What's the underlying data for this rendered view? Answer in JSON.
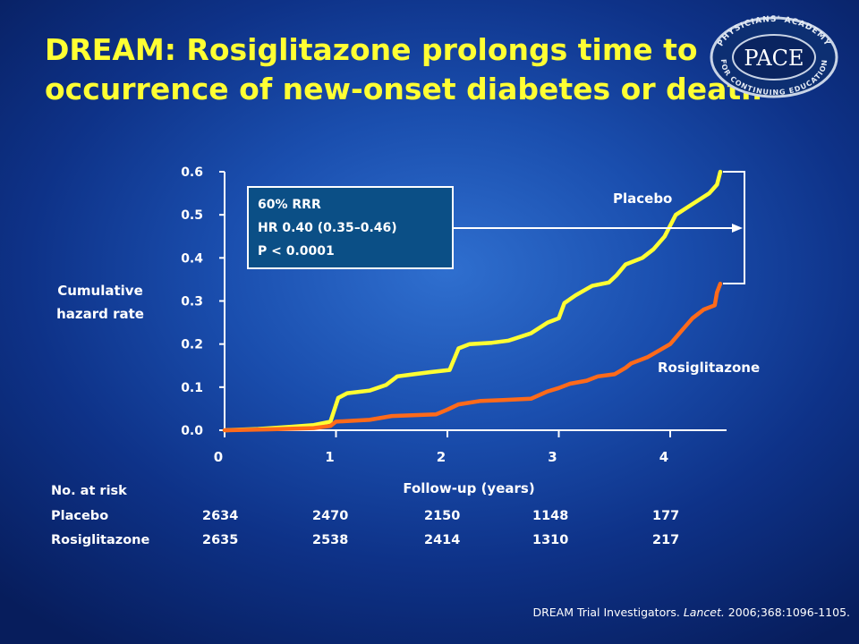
{
  "slide": {
    "title_line1": "DREAM: Rosiglitazone prolongs time to",
    "title_line2": "occurrence of new-onset diabetes or death",
    "logo_center": "PACE",
    "logo_ring_top": "PHYSICIANS' ACADEMY",
    "logo_ring_bottom": "FOR CONTINUING EDUCATION",
    "citation_authors": "DREAM Trial Investigators.",
    "citation_journal": "Lancet.",
    "citation_ref": "2006;368:1096-1105."
  },
  "stats_box": {
    "line1": "60% RRR",
    "line2": "HR 0.40 (0.35–0.46)",
    "line3": "P < 0.0001"
  },
  "colors": {
    "placebo": "#ffff33",
    "rosiglitazone": "#ff6a1a",
    "title": "#ffff33",
    "box_fill": "#0b4f86"
  },
  "chart_data": {
    "type": "line",
    "title": "",
    "xlabel": "Follow-up (years)",
    "ylabel_line1": "Cumulative",
    "ylabel_line2": "hazard rate",
    "xlim": [
      0,
      4.5
    ],
    "ylim": [
      0,
      0.6
    ],
    "x_ticks": [
      0,
      1,
      2,
      3,
      4
    ],
    "x_tick_labels": [
      "0",
      "1",
      "2",
      "3",
      "4"
    ],
    "y_ticks": [
      0.0,
      0.1,
      0.2,
      0.3,
      0.4,
      0.5,
      0.6
    ],
    "y_tick_labels": [
      "0.0",
      "0.1",
      "0.2",
      "0.3",
      "0.4",
      "0.5",
      "0.6"
    ],
    "series": [
      {
        "name": "Placebo",
        "x": [
          0,
          0.3,
          0.6,
          0.8,
          0.95,
          1.02,
          1.1,
          1.3,
          1.45,
          1.55,
          1.7,
          1.85,
          2.02,
          2.1,
          2.2,
          2.4,
          2.55,
          2.75,
          2.9,
          3.0,
          3.05,
          3.15,
          3.3,
          3.45,
          3.52,
          3.6,
          3.75,
          3.85,
          3.95,
          4.05,
          4.2,
          4.35,
          4.42,
          4.45
        ],
        "values": [
          0.0,
          0.003,
          0.008,
          0.012,
          0.02,
          0.075,
          0.086,
          0.092,
          0.105,
          0.125,
          0.13,
          0.135,
          0.14,
          0.19,
          0.2,
          0.203,
          0.208,
          0.225,
          0.25,
          0.26,
          0.295,
          0.313,
          0.335,
          0.343,
          0.36,
          0.385,
          0.4,
          0.42,
          0.45,
          0.5,
          0.525,
          0.55,
          0.57,
          0.6
        ]
      },
      {
        "name": "Rosiglitazone",
        "x": [
          0,
          0.4,
          0.8,
          0.95,
          1.0,
          1.3,
          1.5,
          1.9,
          2.0,
          2.1,
          2.3,
          2.5,
          2.75,
          2.9,
          3.0,
          3.1,
          3.25,
          3.35,
          3.5,
          3.6,
          3.65,
          3.8,
          3.9,
          4.0,
          4.1,
          4.2,
          4.3,
          4.4,
          4.42,
          4.45
        ],
        "values": [
          0.0,
          0.002,
          0.005,
          0.01,
          0.02,
          0.024,
          0.033,
          0.037,
          0.048,
          0.06,
          0.068,
          0.07,
          0.073,
          0.09,
          0.098,
          0.108,
          0.115,
          0.125,
          0.13,
          0.145,
          0.155,
          0.17,
          0.185,
          0.2,
          0.23,
          0.26,
          0.28,
          0.29,
          0.32,
          0.34
        ]
      }
    ],
    "series_label_placebo": "Placebo",
    "series_label_rosiglitazone": "Rosiglitazone"
  },
  "at_risk": {
    "header": "No. at risk",
    "rows": [
      {
        "label": "Placebo",
        "values": [
          "2634",
          "2470",
          "2150",
          "1148",
          "177"
        ]
      },
      {
        "label": "Rosiglitazone",
        "values": [
          "2635",
          "2538",
          "2414",
          "1310",
          "217"
        ]
      }
    ]
  }
}
